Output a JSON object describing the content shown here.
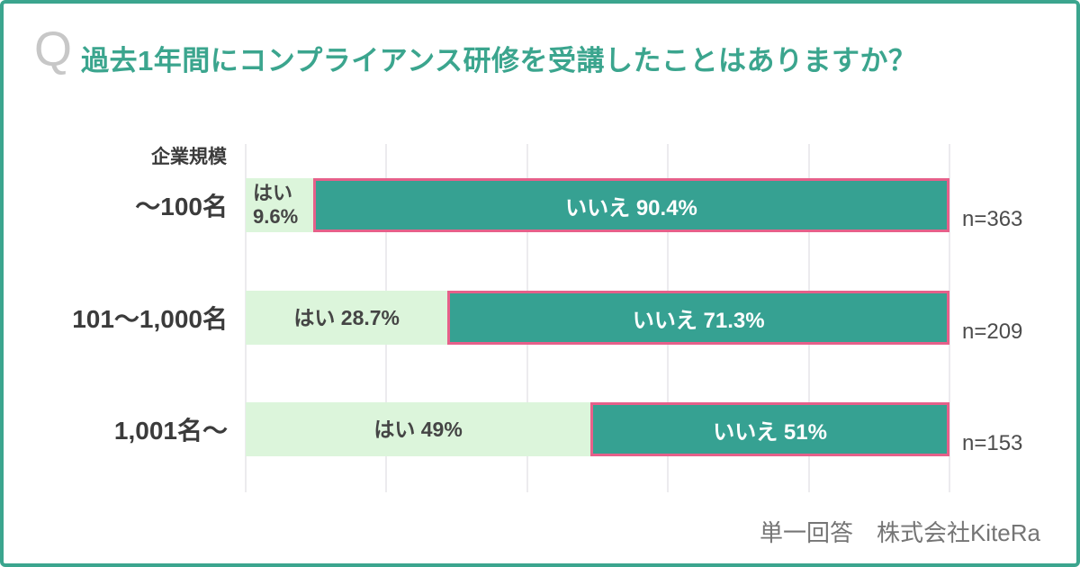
{
  "colors": {
    "accent-teal": "#3BA58E",
    "bar-teal": "#36A192",
    "bar-green": "#DCF5DB",
    "bar-pink-border": "#E6608A",
    "grid-line": "#ECEBEE",
    "text-dark": "#3B3B3B",
    "seg-text-dark": "#454545",
    "n-text": "#4C4C4C",
    "footer-text": "#757575",
    "q-gray": "#C7C7C7"
  },
  "header": {
    "q_icon": "Q",
    "title": "過去1年間にコンプライアンス研修を受講したことはありますか？"
  },
  "chart_data": {
    "type": "bar",
    "orientation": "horizontal",
    "stacked": true,
    "group_axis_label": "企業規模",
    "categories": [
      "～100名",
      "101～1,000名",
      "1,001名～"
    ],
    "series": [
      {
        "name": "はい",
        "values": [
          9.6,
          28.7,
          49
        ]
      },
      {
        "name": "いいえ",
        "values": [
          90.4,
          71.3,
          51
        ]
      }
    ],
    "sample_sizes": [
      "n=363",
      "n=209",
      "n=153"
    ],
    "segment_labels": [
      {
        "yes_lines": [
          "はい",
          "9.6%"
        ],
        "no": "いいえ 90.4%"
      },
      {
        "yes_lines": [
          "はい 28.7%"
        ],
        "no": "いいえ 71.3%"
      },
      {
        "yes_lines": [
          "はい 49%"
        ],
        "no": "いいえ 51%"
      }
    ],
    "xlim": [
      0,
      100
    ],
    "gridlines_pct": [
      0,
      20,
      40,
      60,
      80,
      100
    ],
    "legend": "none"
  },
  "footer": {
    "note": "単一回答　株式会社KiteRa"
  }
}
